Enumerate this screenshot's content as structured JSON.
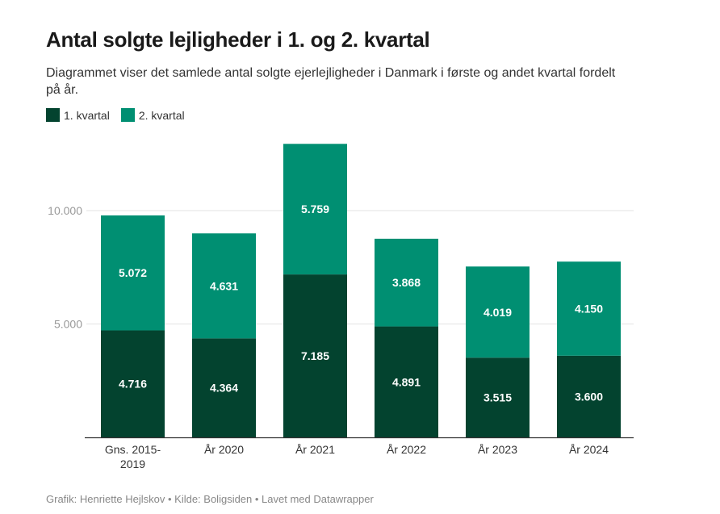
{
  "title": "Antal solgte lejligheder i 1. og 2. kvartal",
  "subtitle": "Diagrammet viser det samlede antal solgte ejerlejligheder i Danmark i første og andet kvartal fordelt på år.",
  "footer": "Grafik: Henriette Hejlskov • Kilde: Boligsiden • Lavet med Datawrapper",
  "chart_data": {
    "type": "bar",
    "stacked": true,
    "title": "Antal solgte lejligheder i 1. og 2. kvartal",
    "categories": [
      [
        "Gns. 2015-",
        "2019"
      ],
      [
        "År 2020"
      ],
      [
        "År 2021"
      ],
      [
        "År 2022"
      ],
      [
        "År 2023"
      ],
      [
        "År 2024"
      ]
    ],
    "series": [
      {
        "name": "1. kvartal",
        "color": "#03432f",
        "values": [
          4716,
          4364,
          7185,
          4891,
          3515,
          3600
        ],
        "labels": [
          "4.716",
          "4.364",
          "7.185",
          "4.891",
          "3.515",
          "3.600"
        ]
      },
      {
        "name": "2. kvartal",
        "color": "#008f72",
        "values": [
          5072,
          4631,
          5759,
          3868,
          4019,
          4150
        ],
        "labels": [
          "5.072",
          "4.631",
          "5.759",
          "3.868",
          "4.019",
          "4.150"
        ]
      }
    ],
    "yticks": [
      5000,
      10000
    ],
    "ytick_labels": [
      "5.000",
      "10.000"
    ],
    "ylim": [
      0,
      13000
    ],
    "grid": true,
    "legend": "top-left"
  }
}
